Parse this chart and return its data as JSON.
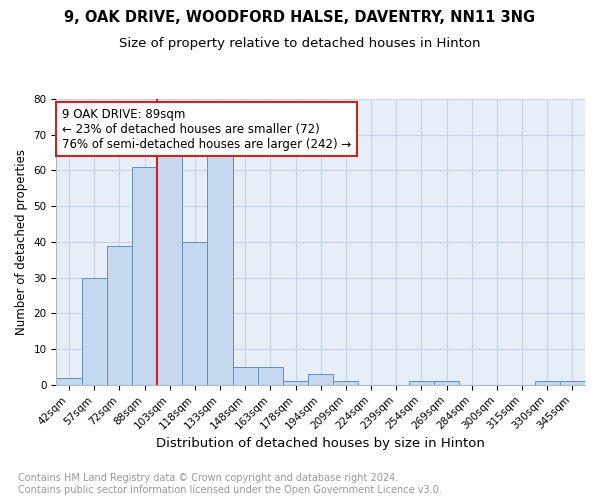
{
  "title1": "9, OAK DRIVE, WOODFORD HALSE, DAVENTRY, NN11 3NG",
  "title2": "Size of property relative to detached houses in Hinton",
  "xlabel": "Distribution of detached houses by size in Hinton",
  "ylabel": "Number of detached properties",
  "categories": [
    "42sqm",
    "57sqm",
    "72sqm",
    "88sqm",
    "103sqm",
    "118sqm",
    "133sqm",
    "148sqm",
    "163sqm",
    "178sqm",
    "194sqm",
    "209sqm",
    "224sqm",
    "239sqm",
    "254sqm",
    "269sqm",
    "284sqm",
    "300sqm",
    "315sqm",
    "330sqm",
    "345sqm"
  ],
  "values": [
    2,
    30,
    39,
    61,
    64,
    40,
    66,
    5,
    5,
    1,
    3,
    1,
    0,
    0,
    1,
    1,
    0,
    0,
    0,
    1,
    1
  ],
  "bar_color": "#c5d8f0",
  "bar_edge_color": "#6090c0",
  "grid_color": "#c8d4e4",
  "background_color": "#e8eef8",
  "property_line_color": "#cc2222",
  "annotation_text": "9 OAK DRIVE: 89sqm\n← 23% of detached houses are smaller (72)\n76% of semi-detached houses are larger (242) →",
  "annotation_box_color": "white",
  "annotation_border_color": "#cc2222",
  "ylim": [
    0,
    80
  ],
  "yticks": [
    0,
    10,
    20,
    30,
    40,
    50,
    60,
    70,
    80
  ],
  "footer": "Contains HM Land Registry data © Crown copyright and database right 2024.\nContains public sector information licensed under the Open Government Licence v3.0.",
  "footer_color": "#999999",
  "title1_fontsize": 10.5,
  "title2_fontsize": 9.5,
  "xlabel_fontsize": 9.5,
  "ylabel_fontsize": 8.5,
  "tick_fontsize": 7.5,
  "annotation_fontsize": 8.5,
  "footer_fontsize": 7
}
